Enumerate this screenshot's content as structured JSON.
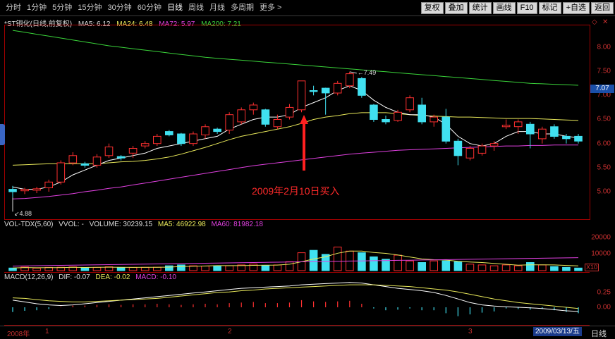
{
  "toolbar": {
    "periods": [
      "分时",
      "1分钟",
      "5分钟",
      "15分钟",
      "30分钟",
      "60分钟",
      "日线",
      "周线",
      "月线",
      "多周期",
      "更多 >"
    ],
    "active_period": "日线",
    "actions": [
      "复权",
      "叠加",
      "统计",
      "画线",
      "F10",
      "标记",
      "+自选",
      "返回"
    ]
  },
  "main_panel": {
    "title": "*ST铜化(日线,前复权)",
    "ma5": "MA5: 6.12",
    "ma24": "MA24: 6.48",
    "ma72": "MA72: 5.97",
    "ma200": "MA200: 7.21",
    "current_price": "7.07",
    "y_ticks": [
      "8.00",
      "7.50",
      "7.00",
      "6.50",
      "6.00",
      "5.50",
      "5.00"
    ],
    "high_marker": "7.49",
    "low_marker": "4.88",
    "annotation": "2009年2月10日买入"
  },
  "volume_panel": {
    "title": "VOL-TDX(5,60)",
    "vvol": "VVOL: -",
    "volume": "VOLUME: 30239.15",
    "ma5": "MA5: 46922.98",
    "ma60": "MA60: 81982.18",
    "y_ticks": [
      "20000",
      "10000"
    ],
    "unit": "X10"
  },
  "macd_panel": {
    "title": "MACD(12,26,9)",
    "dif": "DIF: -0.07",
    "dea": "DEA: -0.02",
    "macd": "MACD: -0.10",
    "y_ticks": [
      "0.25",
      "0.00"
    ]
  },
  "bottom_bar": {
    "year": "2008年",
    "month_1": "1",
    "month_2": "2",
    "month_3": "3",
    "current_date": "2009/03/13/五",
    "period_label": "日线"
  },
  "colors": {
    "up": "#ff3030",
    "down": "#40e0f0",
    "ma5": "#ffffff",
    "ma24": "#e8e85a",
    "ma72": "#e040e0",
    "ma200": "#3ad43a"
  },
  "chart_data": {
    "type": "candlestick",
    "title": "*ST铜化(日线,前复权)",
    "ylim": [
      4.8,
      8.3
    ],
    "candles": [
      {
        "o": 5.05,
        "h": 5.12,
        "l": 4.88,
        "c": 5.0
      },
      {
        "o": 5.02,
        "h": 5.08,
        "l": 4.95,
        "c": 5.05
      },
      {
        "o": 5.03,
        "h": 5.1,
        "l": 4.97,
        "c": 5.06
      },
      {
        "o": 5.08,
        "h": 5.25,
        "l": 5.0,
        "c": 5.2
      },
      {
        "o": 5.2,
        "h": 5.65,
        "l": 5.15,
        "c": 5.6
      },
      {
        "o": 5.6,
        "h": 5.82,
        "l": 5.55,
        "c": 5.75
      },
      {
        "o": 5.58,
        "h": 5.62,
        "l": 5.5,
        "c": 5.55
      },
      {
        "o": 5.55,
        "h": 5.78,
        "l": 5.5,
        "c": 5.72
      },
      {
        "o": 5.75,
        "h": 6.0,
        "l": 5.7,
        "c": 5.93
      },
      {
        "o": 5.73,
        "h": 5.76,
        "l": 5.65,
        "c": 5.7
      },
      {
        "o": 5.8,
        "h": 5.95,
        "l": 5.7,
        "c": 5.9
      },
      {
        "o": 5.95,
        "h": 6.05,
        "l": 5.9,
        "c": 6.0
      },
      {
        "o": 6.0,
        "h": 6.2,
        "l": 5.95,
        "c": 6.15
      },
      {
        "o": 6.25,
        "h": 6.28,
        "l": 6.15,
        "c": 6.18
      },
      {
        "o": 6.2,
        "h": 6.22,
        "l": 5.95,
        "c": 6.0
      },
      {
        "o": 6.0,
        "h": 6.25,
        "l": 5.95,
        "c": 6.2
      },
      {
        "o": 6.18,
        "h": 6.4,
        "l": 6.1,
        "c": 6.35
      },
      {
        "o": 6.3,
        "h": 6.33,
        "l": 6.2,
        "c": 6.25
      },
      {
        "o": 6.28,
        "h": 6.65,
        "l": 6.2,
        "c": 6.6
      },
      {
        "o": 6.45,
        "h": 6.75,
        "l": 6.4,
        "c": 6.7
      },
      {
        "o": 6.7,
        "h": 6.85,
        "l": 6.6,
        "c": 6.8
      },
      {
        "o": 6.7,
        "h": 6.72,
        "l": 6.35,
        "c": 6.4
      },
      {
        "o": 6.35,
        "h": 6.6,
        "l": 6.3,
        "c": 6.5
      },
      {
        "o": 6.55,
        "h": 6.82,
        "l": 6.5,
        "c": 6.75
      },
      {
        "o": 6.7,
        "h": 7.3,
        "l": 6.65,
        "c": 7.3
      },
      {
        "o": 7.1,
        "h": 7.2,
        "l": 7.0,
        "c": 7.08
      },
      {
        "o": 7.15,
        "h": 7.16,
        "l": 6.6,
        "c": 7.05
      },
      {
        "o": 7.05,
        "h": 7.3,
        "l": 7.0,
        "c": 7.25
      },
      {
        "o": 7.2,
        "h": 7.49,
        "l": 7.15,
        "c": 7.45
      },
      {
        "o": 7.35,
        "h": 7.38,
        "l": 6.95,
        "c": 7.0
      },
      {
        "o": 6.8,
        "h": 6.82,
        "l": 6.45,
        "c": 6.5
      },
      {
        "o": 6.5,
        "h": 6.58,
        "l": 6.4,
        "c": 6.45
      },
      {
        "o": 6.48,
        "h": 6.7,
        "l": 6.45,
        "c": 6.65
      },
      {
        "o": 6.7,
        "h": 7.0,
        "l": 6.65,
        "c": 6.95
      },
      {
        "o": 6.8,
        "h": 6.95,
        "l": 6.4,
        "c": 6.45
      },
      {
        "o": 6.45,
        "h": 6.6,
        "l": 6.35,
        "c": 6.55
      },
      {
        "o": 6.55,
        "h": 6.72,
        "l": 6.0,
        "c": 6.05
      },
      {
        "o": 6.05,
        "h": 6.1,
        "l": 5.55,
        "c": 5.75
      },
      {
        "o": 5.7,
        "h": 5.95,
        "l": 5.65,
        "c": 5.9
      },
      {
        "o": 5.8,
        "h": 6.0,
        "l": 5.75,
        "c": 5.95
      },
      {
        "o": 5.95,
        "h": 6.05,
        "l": 5.85,
        "c": 6.0
      },
      {
        "o": 6.35,
        "h": 6.5,
        "l": 6.3,
        "c": 6.38
      },
      {
        "o": 6.35,
        "h": 6.5,
        "l": 6.2,
        "c": 6.45
      },
      {
        "o": 6.4,
        "h": 6.45,
        "l": 5.9,
        "c": 6.2
      },
      {
        "o": 6.1,
        "h": 6.35,
        "l": 6.0,
        "c": 6.3
      },
      {
        "o": 6.35,
        "h": 6.4,
        "l": 6.1,
        "c": 6.15
      },
      {
        "o": 6.15,
        "h": 6.2,
        "l": 6.0,
        "c": 6.1
      },
      {
        "o": 6.15,
        "h": 6.2,
        "l": 6.0,
        "c": 6.05
      }
    ],
    "ma5": [
      5.1,
      5.05,
      5.05,
      5.1,
      5.2,
      5.35,
      5.45,
      5.55,
      5.65,
      5.7,
      5.75,
      5.8,
      5.9,
      5.95,
      6.0,
      6.05,
      6.1,
      6.15,
      6.3,
      6.4,
      6.5,
      6.55,
      6.55,
      6.6,
      6.75,
      6.85,
      6.95,
      7.1,
      7.2,
      7.1,
      6.9,
      6.75,
      6.65,
      6.6,
      6.6,
      6.55,
      6.4,
      6.15,
      6.0,
      5.95,
      6.0,
      6.15,
      6.25,
      6.25,
      6.2,
      6.2,
      6.15,
      6.12
    ],
    "ma24": [
      5.55,
      5.56,
      5.57,
      5.58,
      5.58,
      5.58,
      5.58,
      5.58,
      5.6,
      5.62,
      5.63,
      5.65,
      5.68,
      5.72,
      5.78,
      5.85,
      5.92,
      6.0,
      6.08,
      6.15,
      6.2,
      6.25,
      6.3,
      6.35,
      6.42,
      6.5,
      6.55,
      6.58,
      6.62,
      6.64,
      6.64,
      6.64,
      6.62,
      6.6,
      6.58,
      6.57,
      6.56,
      6.55,
      6.55,
      6.54,
      6.53,
      6.52,
      6.52,
      6.52,
      6.51,
      6.5,
      6.49,
      6.48
    ],
    "ma72": [
      4.85,
      4.86,
      4.88,
      4.9,
      4.93,
      4.96,
      5.0,
      5.03,
      5.07,
      5.1,
      5.14,
      5.18,
      5.22,
      5.26,
      5.3,
      5.34,
      5.38,
      5.42,
      5.46,
      5.5,
      5.54,
      5.57,
      5.6,
      5.63,
      5.66,
      5.69,
      5.72,
      5.75,
      5.78,
      5.8,
      5.82,
      5.84,
      5.86,
      5.87,
      5.88,
      5.89,
      5.9,
      5.91,
      5.92,
      5.93,
      5.94,
      5.95,
      5.95,
      5.96,
      5.96,
      5.97,
      5.97,
      5.97
    ],
    "ma200": [
      8.35,
      8.31,
      8.27,
      8.23,
      8.19,
      8.15,
      8.11,
      8.07,
      8.03,
      8.0,
      7.97,
      7.94,
      7.91,
      7.88,
      7.85,
      7.82,
      7.79,
      7.77,
      7.75,
      7.73,
      7.71,
      7.69,
      7.67,
      7.65,
      7.63,
      7.61,
      7.59,
      7.57,
      7.55,
      7.53,
      7.51,
      7.49,
      7.47,
      7.45,
      7.43,
      7.41,
      7.39,
      7.37,
      7.35,
      7.33,
      7.31,
      7.29,
      7.27,
      7.25,
      7.24,
      7.23,
      7.22,
      7.21
    ],
    "volume": [
      1600,
      2200,
      1500,
      2000,
      2100,
      2300,
      1800,
      2000,
      2400,
      1800,
      2000,
      2000,
      2100,
      3000,
      3500,
      3000,
      2800,
      3000,
      3000,
      3500,
      4000,
      3200,
      3500,
      5500,
      11000,
      12500,
      10000,
      14500,
      12000,
      11000,
      8500,
      7000,
      9500,
      6000,
      5000,
      6000,
      6000,
      5500,
      4000,
      3500,
      3000,
      3500,
      3000,
      5000,
      3500,
      2500,
      2000,
      1600
    ],
    "vol_ylim": [
      0,
      26000
    ],
    "macd_hist": [
      -0.08,
      -0.06,
      -0.05,
      -0.03,
      0.01,
      0.03,
      0.03,
      0.04,
      0.05,
      0.04,
      0.05,
      0.05,
      0.06,
      0.05,
      0.04,
      0.05,
      0.06,
      0.05,
      0.07,
      0.08,
      0.09,
      0.07,
      0.07,
      0.08,
      0.12,
      0.1,
      0.09,
      0.1,
      0.11,
      0.06,
      -0.02,
      -0.05,
      -0.04,
      -0.02,
      -0.05,
      -0.05,
      -0.1,
      -0.15,
      -0.12,
      -0.09,
      -0.07,
      -0.02,
      -0.03,
      -0.04,
      -0.03,
      -0.05,
      -0.08,
      -0.1
    ],
    "dif": [
      0.12,
      0.09,
      0.06,
      0.04,
      0.03,
      0.04,
      0.06,
      0.08,
      0.1,
      0.12,
      0.14,
      0.16,
      0.18,
      0.2,
      0.22,
      0.24,
      0.26,
      0.28,
      0.3,
      0.32,
      0.33,
      0.34,
      0.35,
      0.36,
      0.38,
      0.39,
      0.4,
      0.41,
      0.42,
      0.41,
      0.38,
      0.35,
      0.32,
      0.3,
      0.28,
      0.25,
      0.2,
      0.14,
      0.08,
      0.04,
      0.02,
      0.01,
      0.0,
      -0.01,
      -0.02,
      -0.04,
      -0.06,
      -0.07
    ],
    "dea": [
      0.16,
      0.15,
      0.13,
      0.11,
      0.1,
      0.09,
      0.09,
      0.1,
      0.11,
      0.12,
      0.13,
      0.14,
      0.15,
      0.17,
      0.19,
      0.21,
      0.23,
      0.25,
      0.26,
      0.28,
      0.29,
      0.31,
      0.32,
      0.33,
      0.34,
      0.35,
      0.36,
      0.37,
      0.38,
      0.38,
      0.38,
      0.37,
      0.36,
      0.35,
      0.33,
      0.31,
      0.29,
      0.26,
      0.22,
      0.18,
      0.14,
      0.11,
      0.08,
      0.06,
      0.04,
      0.02,
      0.0,
      -0.02
    ],
    "macd_ylim": [
      -0.2,
      0.45
    ]
  }
}
